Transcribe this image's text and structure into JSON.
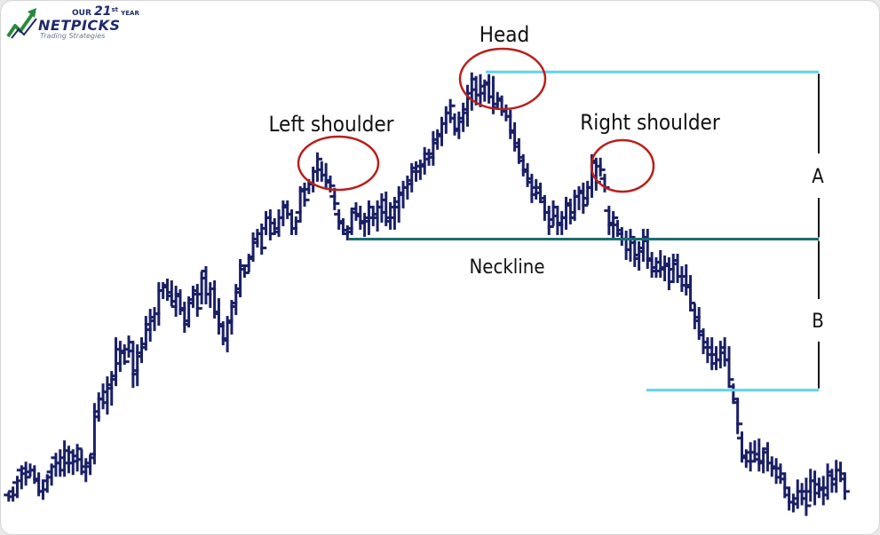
{
  "logo": {
    "top_text_small": "OUR",
    "top_number": "21",
    "top_suffix": "st",
    "top_year": "YEAR",
    "brand": "NETPICKS",
    "tagline": "Trading Strategies"
  },
  "chart_data": {
    "type": "bar",
    "title": "",
    "xlabel": "",
    "ylabel": "",
    "grid": false,
    "style": "ohlc-bars",
    "x_unit": "bar index",
    "y_unit": "price (unscaled)",
    "xlim": [
      0,
      204
    ],
    "ylim": [
      0,
      600
    ],
    "bars": [
      [
        1,
        554,
        562,
        556,
        558
      ],
      [
        2,
        548,
        562,
        552,
        556
      ],
      [
        3,
        536,
        558,
        542,
        540
      ],
      [
        4,
        524,
        548,
        528,
        532
      ],
      [
        5,
        520,
        544,
        526,
        536
      ],
      [
        6,
        522,
        534,
        530,
        528
      ],
      [
        7,
        524,
        542,
        528,
        538
      ],
      [
        8,
        532,
        556,
        540,
        552
      ],
      [
        9,
        540,
        560,
        552,
        550
      ],
      [
        10,
        534,
        552,
        540,
        536
      ],
      [
        11,
        522,
        544,
        530,
        524
      ],
      [
        12,
        510,
        534,
        514,
        520
      ],
      [
        13,
        506,
        534,
        520,
        528
      ],
      [
        14,
        496,
        534,
        514,
        506
      ],
      [
        15,
        502,
        530,
        520,
        508
      ],
      [
        16,
        506,
        532,
        520,
        512
      ],
      [
        17,
        500,
        528,
        518,
        504
      ],
      [
        18,
        506,
        532,
        516,
        524
      ],
      [
        19,
        516,
        540,
        530,
        520
      ],
      [
        20,
        512,
        532,
        524,
        514
      ],
      [
        21,
        454,
        520,
        510,
        462
      ],
      [
        22,
        442,
        472,
        468,
        448
      ],
      [
        23,
        432,
        458,
        448,
        440
      ],
      [
        24,
        424,
        464,
        452,
        432
      ],
      [
        25,
        418,
        454,
        436,
        426
      ],
      [
        26,
        380,
        432,
        422,
        392
      ],
      [
        27,
        384,
        416,
        408,
        394
      ],
      [
        28,
        388,
        408,
        396,
        406
      ],
      [
        29,
        378,
        400,
        392,
        384
      ],
      [
        30,
        384,
        434,
        394,
        420
      ],
      [
        31,
        388,
        432,
        416,
        396
      ],
      [
        32,
        380,
        406,
        400,
        390
      ],
      [
        33,
        356,
        392,
        386,
        364
      ],
      [
        34,
        348,
        382,
        370,
        356
      ],
      [
        35,
        346,
        370,
        360,
        352
      ],
      [
        36,
        318,
        364,
        352,
        326
      ],
      [
        37,
        318,
        334,
        326,
        322
      ],
      [
        38,
        314,
        336,
        320,
        328
      ],
      [
        39,
        316,
        342,
        332,
        338
      ],
      [
        40,
        322,
        354,
        344,
        330
      ],
      [
        41,
        326,
        352,
        332,
        348
      ],
      [
        42,
        340,
        372,
        346,
        364
      ],
      [
        43,
        334,
        366,
        360,
        340
      ],
      [
        44,
        322,
        344,
        336,
        326
      ],
      [
        45,
        320,
        354,
        330,
        346
      ],
      [
        46,
        306,
        340,
        330,
        312
      ],
      [
        47,
        300,
        340,
        304,
        330
      ],
      [
        48,
        318,
        344,
        330,
        324
      ],
      [
        49,
        316,
        356,
        324,
        350
      ],
      [
        50,
        336,
        374,
        352,
        364
      ],
      [
        51,
        362,
        386,
        366,
        380
      ],
      [
        52,
        356,
        394,
        382,
        362
      ],
      [
        53,
        338,
        374,
        360,
        344
      ],
      [
        54,
        320,
        352,
        340,
        328
      ],
      [
        55,
        292,
        332,
        324,
        298
      ],
      [
        56,
        298,
        310,
        302,
        306
      ],
      [
        57,
        286,
        304,
        298,
        290
      ],
      [
        58,
        262,
        292,
        288,
        268
      ],
      [
        59,
        258,
        276,
        272,
        262
      ],
      [
        60,
        252,
        284,
        262,
        278
      ],
      [
        61,
        238,
        262,
        256,
        244
      ],
      [
        62,
        236,
        268,
        244,
        262
      ],
      [
        63,
        246,
        262,
        250,
        256
      ],
      [
        64,
        236,
        264,
        260,
        244
      ],
      [
        65,
        226,
        252,
        244,
        232
      ],
      [
        66,
        226,
        244,
        230,
        240
      ],
      [
        67,
        236,
        262,
        240,
        256
      ],
      [
        68,
        244,
        262,
        256,
        248
      ],
      [
        69,
        210,
        248,
        238,
        214
      ],
      [
        70,
        206,
        230,
        212,
        224
      ],
      [
        71,
        202,
        216,
        212,
        206
      ],
      [
        72,
        188,
        214,
        206,
        192
      ],
      [
        73,
        172,
        202,
        192,
        178
      ],
      [
        74,
        182,
        202,
        190,
        196
      ],
      [
        75,
        184,
        210,
        196,
        202
      ],
      [
        76,
        198,
        214,
        204,
        208
      ],
      [
        77,
        212,
        234,
        220,
        228
      ],
      [
        78,
        236,
        256,
        240,
        248
      ],
      [
        79,
        246,
        262,
        250,
        258
      ],
      [
        80,
        254,
        268,
        262,
        260
      ],
      [
        81,
        234,
        262,
        256,
        238
      ],
      [
        82,
        228,
        246,
        234,
        240
      ],
      [
        83,
        232,
        256,
        242,
        250
      ],
      [
        84,
        240,
        264,
        248,
        244
      ],
      [
        85,
        226,
        262,
        248,
        232
      ],
      [
        86,
        232,
        252,
        244,
        240
      ],
      [
        87,
        226,
        258,
        244,
        232
      ],
      [
        88,
        218,
        248,
        232,
        224
      ],
      [
        89,
        216,
        252,
        238,
        248
      ],
      [
        90,
        228,
        256,
        244,
        232
      ],
      [
        91,
        222,
        256,
        244,
        226
      ],
      [
        92,
        210,
        248,
        232,
        216
      ],
      [
        93,
        204,
        232,
        218,
        210
      ],
      [
        94,
        198,
        222,
        210,
        202
      ],
      [
        95,
        184,
        214,
        206,
        188
      ],
      [
        96,
        182,
        202,
        192,
        186
      ],
      [
        97,
        180,
        200,
        192,
        184
      ],
      [
        98,
        166,
        194,
        186,
        172
      ],
      [
        99,
        168,
        184,
        178,
        172
      ],
      [
        100,
        148,
        184,
        176,
        156
      ],
      [
        101,
        146,
        166,
        160,
        150
      ],
      [
        102,
        132,
        162,
        152,
        138
      ],
      [
        103,
        120,
        148,
        138,
        126
      ],
      [
        104,
        112,
        136,
        126,
        118
      ],
      [
        105,
        128,
        150,
        132,
        144
      ],
      [
        106,
        126,
        154,
        146,
        132
      ],
      [
        107,
        116,
        146,
        136,
        122
      ],
      [
        108,
        96,
        140,
        126,
        104
      ],
      [
        109,
        82,
        122,
        110,
        88
      ],
      [
        110,
        86,
        116,
        100,
        106
      ],
      [
        111,
        84,
        118,
        106,
        96
      ],
      [
        112,
        90,
        112,
        104,
        94
      ],
      [
        113,
        84,
        114,
        92,
        108
      ],
      [
        114,
        86,
        126,
        108,
        120
      ],
      [
        115,
        104,
        120,
        116,
        110
      ],
      [
        116,
        108,
        128,
        112,
        124
      ],
      [
        117,
        118,
        134,
        124,
        130
      ],
      [
        118,
        124,
        154,
        130,
        146
      ],
      [
        119,
        138,
        168,
        148,
        160
      ],
      [
        120,
        156,
        182,
        164,
        176
      ],
      [
        121,
        174,
        196,
        180,
        190
      ],
      [
        122,
        184,
        208,
        192,
        200
      ],
      [
        123,
        196,
        226,
        204,
        218
      ],
      [
        124,
        202,
        222,
        210,
        216
      ],
      [
        125,
        206,
        226,
        210,
        222
      ],
      [
        126,
        220,
        246,
        226,
        238
      ],
      [
        127,
        232,
        262,
        238,
        254
      ],
      [
        128,
        226,
        252,
        246,
        232
      ],
      [
        129,
        232,
        262,
        242,
        250
      ],
      [
        130,
        238,
        262,
        252,
        244
      ],
      [
        131,
        222,
        256,
        244,
        228
      ],
      [
        132,
        224,
        250,
        230,
        244
      ],
      [
        133,
        214,
        246,
        238,
        220
      ],
      [
        134,
        210,
        234,
        220,
        216
      ],
      [
        135,
        206,
        238,
        214,
        230
      ],
      [
        136,
        204,
        228,
        222,
        210
      ],
      [
        137,
        174,
        220,
        210,
        180
      ],
      [
        138,
        178,
        212,
        182,
        204
      ],
      [
        139,
        178,
        196,
        186,
        190
      ],
      [
        140,
        196,
        214,
        200,
        210
      ],
      [
        141,
        232,
        262,
        236,
        252
      ],
      [
        142,
        238,
        266,
        250,
        244
      ],
      [
        143,
        248,
        264,
        252,
        258
      ],
      [
        144,
        256,
        274,
        262,
        268
      ],
      [
        145,
        260,
        290,
        268,
        280
      ],
      [
        146,
        258,
        292,
        280,
        266
      ],
      [
        147,
        268,
        298,
        272,
        290
      ],
      [
        148,
        272,
        302,
        286,
        278
      ],
      [
        149,
        258,
        292,
        282,
        266
      ],
      [
        150,
        258,
        300,
        270,
        290
      ],
      [
        151,
        284,
        310,
        292,
        304
      ],
      [
        152,
        290,
        310,
        300,
        304
      ],
      [
        153,
        282,
        310,
        294,
        302
      ],
      [
        154,
        288,
        314,
        300,
        296
      ],
      [
        155,
        290,
        324,
        298,
        316
      ],
      [
        156,
        286,
        316,
        302,
        296
      ],
      [
        157,
        286,
        316,
        292,
        310
      ],
      [
        158,
        300,
        326,
        310,
        320
      ],
      [
        159,
        298,
        330,
        310,
        322
      ],
      [
        160,
        310,
        348,
        320,
        340
      ],
      [
        161,
        342,
        368,
        348,
        360
      ],
      [
        162,
        346,
        380,
        356,
        372
      ],
      [
        163,
        370,
        396,
        376,
        390
      ],
      [
        164,
        380,
        406,
        384,
        398
      ],
      [
        165,
        380,
        414,
        390,
        408
      ],
      [
        166,
        390,
        414,
        398,
        404
      ],
      [
        167,
        384,
        412,
        404,
        396
      ],
      [
        168,
        380,
        410,
        390,
        404
      ],
      [
        169,
        390,
        434,
        404,
        426
      ],
      [
        170,
        432,
        452,
        434,
        448
      ],
      [
        171,
        448,
        486,
        452,
        476
      ],
      [
        172,
        486,
        518,
        492,
        512
      ],
      [
        173,
        506,
        524,
        514,
        518
      ],
      [
        174,
        498,
        528,
        508,
        518
      ],
      [
        175,
        496,
        518,
        508,
        510
      ],
      [
        176,
        494,
        528,
        516,
        520
      ],
      [
        177,
        504,
        530,
        518,
        508
      ],
      [
        178,
        498,
        528,
        504,
        520
      ],
      [
        179,
        514,
        534,
        520,
        526
      ],
      [
        180,
        516,
        542,
        524,
        536
      ],
      [
        181,
        522,
        542,
        526,
        532
      ],
      [
        182,
        532,
        558,
        538,
        548
      ],
      [
        183,
        548,
        572,
        556,
        564
      ],
      [
        184,
        556,
        574,
        564,
        566
      ],
      [
        185,
        540,
        570,
        560,
        552
      ],
      [
        186,
        544,
        566,
        552,
        560
      ],
      [
        187,
        538,
        578,
        552,
        568
      ],
      [
        188,
        528,
        562,
        552,
        540
      ],
      [
        189,
        530,
        566,
        540,
        554
      ],
      [
        190,
        538,
        558,
        544,
        550
      ],
      [
        191,
        536,
        566,
        548,
        556
      ],
      [
        192,
        522,
        560,
        548,
        530
      ],
      [
        193,
        528,
        552,
        534,
        544
      ],
      [
        194,
        518,
        552,
        538,
        528
      ],
      [
        195,
        520,
        540,
        528,
        532
      ],
      [
        196,
        532,
        560,
        538,
        552
      ]
    ],
    "levels": [
      {
        "name": "neckline",
        "value": 268
      },
      {
        "name": "head-level",
        "value": 80
      },
      {
        "name": "target",
        "value": 438
      }
    ],
    "annotations": {
      "head": "Head",
      "left_shoulder": "Left shoulder",
      "right_shoulder": "Right shoulder",
      "neckline": "Neckline",
      "measure_a": "A",
      "measure_b": "B"
    },
    "colors": {
      "bars": "#1a2066",
      "neckline": "#1b6d6d",
      "level_lines": "#5fd3e3",
      "circles": "#b8201c",
      "measure": "#111111"
    }
  }
}
